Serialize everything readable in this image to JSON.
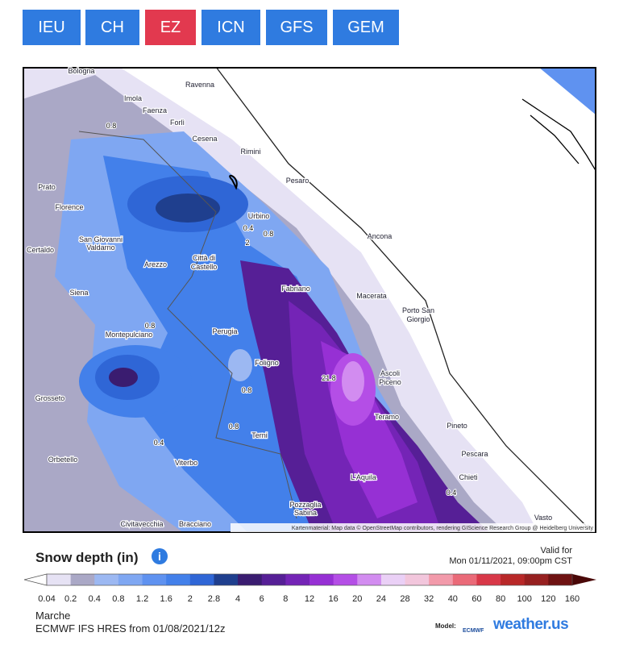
{
  "nav": {
    "tabs": [
      "IEU",
      "CH",
      "EZ",
      "ICN",
      "GFS",
      "GEM"
    ],
    "active": 2
  },
  "map": {
    "places": [
      "Bologna",
      "Ravenna",
      "Imola",
      "Faenza",
      "Forlì",
      "Cesena",
      "Rimini",
      "Prato",
      "Pesaro",
      "Florence",
      "Urbino",
      "Ancona",
      "San Giovanni",
      "Valdarno",
      "Certaldo",
      "Arezzo",
      "Città di",
      "Castello",
      "Fabriano",
      "Macerata",
      "Siena",
      "Porto San",
      "Giorgio",
      "Montepulciano",
      "Perugia",
      "Foligno",
      "Ascoli",
      "Piceno",
      "Grosseto",
      "Teramo",
      "Pineto",
      "Terni",
      "Pescara",
      "Orbetello",
      "Viterbo",
      "L'Aquila",
      "Chieti",
      "Pozzaglia",
      "Sabina",
      "Vasto",
      "Civitavecchia",
      "Bracciano"
    ],
    "contour_labels": [
      "0.8",
      "0.4",
      "0.8",
      "2",
      "0.8",
      "21.8",
      "0.8",
      "0.8",
      "0.4",
      "0.4"
    ],
    "attribution": "Kartenmaterial: Map data © OpenStreetMap contributors, rendering GIScience Research Group @ Heidelberg University"
  },
  "legend": {
    "title": "Snow depth (in)",
    "valid_label": "Valid for",
    "valid_time": "Mon 01/11/2021, 09:00pm CST",
    "labels": [
      "0.04",
      "0.2",
      "0.4",
      "0.8",
      "1.2",
      "1.6",
      "2",
      "2.8",
      "4",
      "6",
      "8",
      "12",
      "16",
      "20",
      "24",
      "28",
      "32",
      "40",
      "60",
      "80",
      "100",
      "120",
      "160"
    ],
    "colors": [
      "#e6e2f4",
      "#aaa8c6",
      "#9cb8f2",
      "#7fa7f2",
      "#5f92f0",
      "#4380ea",
      "#2f66d6",
      "#1f3f8e",
      "#3a1c70",
      "#561f96",
      "#7424b6",
      "#9630d4",
      "#b44ee6",
      "#d28cf0",
      "#ead0f6",
      "#f2c6dc",
      "#f29aaa",
      "#ea6a78",
      "#d83848",
      "#b82828",
      "#962020",
      "#6e1212"
    ]
  },
  "footer": {
    "region": "Marche",
    "model_run": "ECMWF IFS HRES from 01/08/2021/12z",
    "model_label": "Model:",
    "ecmwf": "ECMWF",
    "brand": "weather.us"
  }
}
